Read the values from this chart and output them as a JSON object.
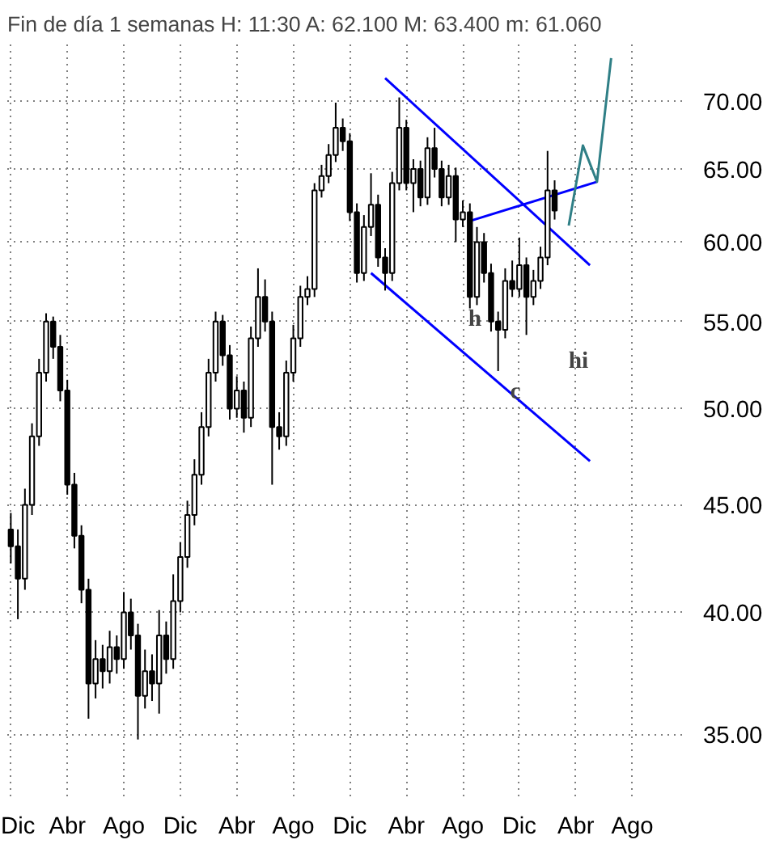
{
  "chart_data": {
    "type": "candlestick",
    "title": "Fin de día 1 semanas  H: 11:30  A: 62.100  M: 63.400  m: 61.060",
    "categories": [
      "Dic",
      null,
      null,
      null,
      null,
      null,
      null,
      null,
      "Abr",
      null,
      null,
      null,
      null,
      null,
      null,
      null,
      "Ago",
      null,
      null,
      null,
      null,
      null,
      null,
      null,
      "Dic",
      null,
      null,
      null,
      null,
      null,
      null,
      null,
      "Abr",
      null,
      null,
      null,
      null,
      null,
      null,
      null,
      "Ago",
      null,
      null,
      null,
      null,
      null,
      null,
      null,
      "Dic",
      null,
      null,
      null,
      null,
      null,
      null,
      null,
      "Abr",
      null,
      null,
      null,
      null,
      null,
      null,
      null,
      "Ago",
      null,
      null,
      null,
      null,
      null,
      null,
      null,
      "Dic",
      null,
      null,
      null,
      null,
      null,
      null,
      null,
      "Abr",
      null,
      null,
      null,
      null,
      null,
      null,
      null,
      "Ago",
      null,
      null,
      null,
      null,
      null,
      null,
      null
    ],
    "ohlc": [
      [
        43.8,
        44.6,
        42.2,
        43.0
      ],
      [
        43.0,
        43.8,
        39.7,
        41.5
      ],
      [
        41.5,
        45.8,
        41.0,
        45.0
      ],
      [
        45.0,
        49.2,
        44.5,
        48.5
      ],
      [
        48.5,
        52.8,
        48.0,
        52.0
      ],
      [
        52.0,
        55.5,
        51.5,
        55.0
      ],
      [
        55.0,
        55.3,
        52.8,
        53.5
      ],
      [
        53.5,
        54.2,
        50.4,
        51.0
      ],
      [
        51.0,
        51.6,
        45.5,
        46.0
      ],
      [
        46.0,
        46.6,
        42.9,
        43.5
      ],
      [
        43.5,
        44.0,
        40.4,
        41.0
      ],
      [
        41.0,
        41.5,
        35.6,
        37.0
      ],
      [
        37.0,
        38.8,
        36.4,
        38.0
      ],
      [
        38.0,
        38.6,
        36.8,
        37.5
      ],
      [
        37.5,
        39.2,
        37.0,
        38.5
      ],
      [
        38.5,
        39.0,
        37.4,
        38.0
      ],
      [
        38.0,
        40.9,
        37.6,
        40.0
      ],
      [
        40.0,
        40.6,
        38.4,
        39.0
      ],
      [
        39.0,
        39.5,
        34.8,
        36.5
      ],
      [
        36.5,
        38.4,
        36.0,
        37.5
      ],
      [
        37.5,
        38.2,
        36.3,
        37.0
      ],
      [
        37.0,
        40.1,
        35.8,
        39.0
      ],
      [
        39.0,
        39.6,
        37.4,
        38.0
      ],
      [
        38.0,
        41.7,
        37.6,
        40.5
      ],
      [
        40.5,
        43.2,
        40.0,
        42.5
      ],
      [
        42.5,
        45.2,
        42.0,
        44.5
      ],
      [
        44.5,
        47.3,
        44.0,
        46.5
      ],
      [
        46.5,
        49.8,
        46.0,
        49.0
      ],
      [
        49.0,
        52.8,
        48.5,
        52.0
      ],
      [
        52.0,
        55.6,
        51.5,
        55.0
      ],
      [
        55.0,
        55.4,
        52.4,
        53.0
      ],
      [
        53.0,
        53.6,
        49.4,
        50.0
      ],
      [
        50.0,
        51.8,
        49.5,
        51.0
      ],
      [
        51.0,
        51.5,
        48.7,
        49.5
      ],
      [
        49.5,
        54.7,
        49.0,
        54.0
      ],
      [
        54.0,
        58.3,
        53.5,
        56.5
      ],
      [
        56.5,
        57.6,
        54.4,
        55.0
      ],
      [
        55.0,
        55.6,
        46.0,
        49.0
      ],
      [
        49.0,
        49.8,
        47.8,
        48.5
      ],
      [
        48.5,
        52.7,
        48.0,
        52.0
      ],
      [
        52.0,
        54.8,
        51.5,
        54.0
      ],
      [
        54.0,
        57.2,
        53.5,
        56.5
      ],
      [
        56.5,
        57.8,
        56.0,
        57.0
      ],
      [
        57.0,
        64.0,
        56.5,
        63.5
      ],
      [
        63.5,
        65.3,
        63.0,
        64.5
      ],
      [
        64.5,
        66.8,
        64.0,
        66.0
      ],
      [
        66.0,
        69.9,
        65.5,
        68.0
      ],
      [
        68.0,
        68.7,
        66.3,
        67.0
      ],
      [
        67.0,
        67.6,
        61.4,
        62.0
      ],
      [
        62.0,
        62.6,
        57.4,
        58.0
      ],
      [
        58.0,
        61.8,
        57.5,
        61.0
      ],
      [
        61.0,
        64.7,
        60.4,
        62.5
      ],
      [
        62.5,
        63.2,
        58.4,
        59.0
      ],
      [
        59.0,
        59.6,
        56.9,
        58.0
      ],
      [
        58.0,
        64.8,
        57.5,
        64.0
      ],
      [
        64.0,
        70.3,
        63.5,
        68.0
      ],
      [
        68.0,
        68.6,
        63.5,
        64.0
      ],
      [
        64.0,
        65.7,
        62.0,
        65.0
      ],
      [
        65.0,
        65.6,
        62.4,
        63.0
      ],
      [
        63.0,
        67.3,
        62.5,
        66.5
      ],
      [
        66.5,
        68.0,
        64.4,
        65.0
      ],
      [
        65.0,
        65.6,
        62.4,
        63.0
      ],
      [
        63.0,
        65.3,
        62.5,
        64.5
      ],
      [
        64.5,
        65.1,
        60.0,
        61.5
      ],
      [
        61.5,
        62.8,
        61.0,
        62.0
      ],
      [
        62.0,
        62.6,
        55.8,
        56.5
      ],
      [
        56.5,
        61.0,
        56.0,
        60.0
      ],
      [
        60.0,
        60.6,
        57.4,
        58.0
      ],
      [
        58.0,
        58.6,
        54.4,
        55.0
      ],
      [
        55.0,
        55.6,
        52.1,
        54.5
      ],
      [
        54.5,
        58.3,
        54.0,
        57.5
      ],
      [
        57.5,
        58.8,
        56.5,
        57.0
      ],
      [
        57.0,
        60.3,
        56.5,
        58.5
      ],
      [
        58.5,
        59.0,
        54.2,
        56.5
      ],
      [
        56.5,
        58.2,
        56.0,
        57.5
      ],
      [
        57.5,
        59.7,
        57.0,
        59.0
      ],
      [
        59.0,
        66.3,
        58.5,
        63.5
      ],
      [
        63.5,
        64.2,
        61.5,
        62.1
      ],
      null,
      null,
      null,
      null,
      null,
      null,
      null,
      null,
      null,
      null,
      null,
      null,
      null,
      null,
      null,
      null,
      null,
      null
    ],
    "series": [
      {
        "type": "line",
        "color": "#0000ff",
        "values": [
          null,
          null,
          null,
          null,
          null,
          null,
          null,
          null,
          null,
          null,
          null,
          null,
          null,
          null,
          null,
          null,
          null,
          null,
          null,
          null,
          null,
          null,
          null,
          null,
          null,
          null,
          null,
          null,
          null,
          null,
          null,
          null,
          null,
          null,
          null,
          null,
          null,
          null,
          null,
          null,
          null,
          null,
          null,
          null,
          null,
          null,
          null,
          null,
          null,
          null,
          null,
          null,
          null,
          71.8,
          null,
          null,
          null,
          null,
          null,
          null,
          null,
          null,
          null,
          null,
          null,
          null,
          null,
          null,
          null,
          null,
          null,
          null,
          null,
          null,
          null,
          null,
          null,
          null,
          null,
          null,
          null,
          null,
          58.5,
          null,
          null,
          null,
          null,
          null,
          null,
          null,
          null,
          null,
          null,
          null,
          null,
          null
        ]
      },
      {
        "type": "line",
        "color": "#0000ff",
        "values": [
          null,
          null,
          null,
          null,
          null,
          null,
          null,
          null,
          null,
          null,
          null,
          null,
          null,
          null,
          null,
          null,
          null,
          null,
          null,
          null,
          null,
          null,
          null,
          null,
          null,
          null,
          null,
          null,
          null,
          null,
          null,
          null,
          null,
          null,
          null,
          null,
          null,
          null,
          null,
          null,
          null,
          null,
          null,
          null,
          null,
          null,
          null,
          null,
          null,
          null,
          null,
          58.0,
          null,
          null,
          null,
          null,
          null,
          null,
          null,
          null,
          null,
          null,
          null,
          null,
          null,
          null,
          null,
          null,
          null,
          null,
          null,
          null,
          null,
          null,
          null,
          null,
          null,
          null,
          null,
          null,
          null,
          null,
          47.2,
          null,
          null,
          null,
          null,
          null,
          null,
          null,
          null,
          null,
          null,
          null,
          null,
          null
        ]
      },
      {
        "type": "line",
        "color": "#0000ff",
        "values": [
          null,
          null,
          null,
          null,
          null,
          null,
          null,
          null,
          null,
          null,
          null,
          null,
          null,
          null,
          null,
          null,
          null,
          null,
          null,
          null,
          null,
          null,
          null,
          null,
          null,
          null,
          null,
          null,
          null,
          null,
          null,
          null,
          null,
          null,
          null,
          null,
          null,
          null,
          null,
          null,
          null,
          null,
          null,
          null,
          null,
          null,
          null,
          null,
          null,
          null,
          null,
          null,
          null,
          null,
          null,
          null,
          null,
          null,
          null,
          null,
          null,
          null,
          null,
          null,
          null,
          61.4,
          null,
          null,
          null,
          null,
          null,
          null,
          null,
          null,
          null,
          null,
          null,
          null,
          null,
          null,
          null,
          null,
          null,
          64.1,
          null,
          null,
          null,
          null,
          null,
          null,
          null,
          null,
          null,
          null,
          null,
          null
        ]
      },
      {
        "type": "line",
        "color": "#2f7f86",
        "values": [
          null,
          null,
          null,
          null,
          null,
          null,
          null,
          null,
          null,
          null,
          null,
          null,
          null,
          null,
          null,
          null,
          null,
          null,
          null,
          null,
          null,
          null,
          null,
          null,
          null,
          null,
          null,
          null,
          null,
          null,
          null,
          null,
          null,
          null,
          null,
          null,
          null,
          null,
          null,
          null,
          null,
          null,
          null,
          null,
          null,
          null,
          null,
          null,
          null,
          null,
          null,
          null,
          null,
          null,
          null,
          null,
          null,
          null,
          null,
          null,
          null,
          null,
          null,
          null,
          null,
          null,
          null,
          null,
          null,
          null,
          null,
          null,
          null,
          null,
          null,
          null,
          null,
          null,
          null,
          61.1,
          null,
          66.7,
          null,
          64.1,
          null,
          73.4,
          null,
          null,
          null,
          null,
          null,
          null,
          null,
          null,
          null,
          null
        ]
      }
    ],
    "annotations": [
      "h",
      "c",
      "hi"
    ],
    "ylim": [
      32.7,
      74.5
    ],
    "log": "y",
    "grid": true,
    "yticks": [
      {
        "value": 35,
        "label": "35.00"
      },
      {
        "value": 40,
        "label": "40.00"
      },
      {
        "value": 45,
        "label": "45.00"
      },
      {
        "value": 50,
        "label": "50.00"
      },
      {
        "value": 55,
        "label": "55.00"
      },
      {
        "value": 60,
        "label": "60.00"
      },
      {
        "value": 65,
        "label": "65.00"
      },
      {
        "value": 70,
        "label": "70.00"
      }
    ]
  }
}
